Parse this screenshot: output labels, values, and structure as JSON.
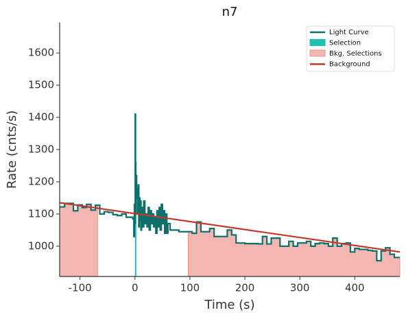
{
  "chart_data": {
    "type": "lightcurve",
    "title": "n7",
    "x_label": "Time (s)",
    "y_label": "Rate (cnts/s)",
    "xlim": [
      -137,
      482
    ],
    "ylim": [
      906,
      1694
    ],
    "xticks": [
      -100,
      0,
      100,
      200,
      300,
      400
    ],
    "yticks": [
      1000,
      1100,
      1200,
      1300,
      1400,
      1500,
      1600
    ],
    "legend_position": "upper right",
    "light_curve": {
      "name": "Light Curve",
      "color": "#0e706a",
      "x": [
        -137,
        -128,
        -120,
        -112,
        -104,
        -96,
        -88,
        -80,
        -72,
        -64,
        -56,
        -48,
        -40,
        -32,
        -24,
        -16,
        -8,
        -4,
        -2,
        -1,
        0,
        0.5,
        1,
        1.5,
        2,
        3,
        4,
        5,
        6,
        7,
        8,
        9,
        10,
        11,
        12,
        14,
        16,
        18,
        20,
        22,
        24,
        26,
        28,
        30,
        32,
        34,
        36,
        38,
        40,
        42,
        44,
        46,
        48,
        50,
        52,
        54,
        56,
        58,
        60,
        64,
        72,
        80,
        88,
        96,
        104,
        112,
        120,
        128,
        136,
        144,
        152,
        160,
        168,
        176,
        184,
        192,
        200,
        208,
        216,
        224,
        232,
        240,
        248,
        256,
        264,
        272,
        280,
        288,
        296,
        304,
        312,
        320,
        328,
        336,
        344,
        352,
        360,
        368,
        376,
        384,
        392,
        400,
        408,
        416,
        424,
        432,
        440,
        448,
        456,
        464,
        472,
        480
      ],
      "values": [
        1122,
        1133,
        1133,
        1110,
        1128,
        1120,
        1130,
        1112,
        1127,
        1100,
        1107,
        1105,
        1098,
        1095,
        1100,
        1090,
        1090,
        1085,
        1030,
        1130,
        1070,
        1410,
        1260,
        1100,
        1220,
        1150,
        1180,
        1100,
        1190,
        1060,
        1150,
        1080,
        1140,
        1050,
        1120,
        1060,
        1140,
        1070,
        1100,
        1060,
        1120,
        1050,
        1110,
        1070,
        1100,
        1060,
        1090,
        1040,
        1110,
        1060,
        1120,
        1050,
        1130,
        1070,
        1110,
        1040,
        1100,
        1040,
        1070,
        1050,
        1050,
        1045,
        1045,
        1045,
        1040,
        1075,
        1045,
        1045,
        1055,
        1030,
        1030,
        1030,
        1050,
        1035,
        1010,
        1010,
        1008,
        1008,
        1008,
        1007,
        1030,
        1007,
        1025,
        1025,
        1000,
        1000,
        1015,
        1000,
        1010,
        1010,
        1015,
        1000,
        1008,
        1010,
        1008,
        1000,
        1025,
        1000,
        1008,
        1010,
        982,
        993,
        990,
        990,
        987,
        985,
        955,
        985,
        995,
        975,
        965,
        965
      ]
    },
    "selection": {
      "name": "Selection",
      "color": "#1fc0b2",
      "ranges": [
        [
          0,
          2.5
        ]
      ]
    },
    "bkg_selections": {
      "name": "Bkg. Selections",
      "color": "#f4b6b0",
      "edge_color": "#e4948c",
      "ranges": [
        [
          -137,
          -68
        ],
        [
          97,
          482
        ]
      ]
    },
    "background": {
      "name": "Background",
      "color": "#c0392b",
      "x": [
        -137,
        482
      ],
      "values": [
        1135,
        982
      ]
    }
  }
}
